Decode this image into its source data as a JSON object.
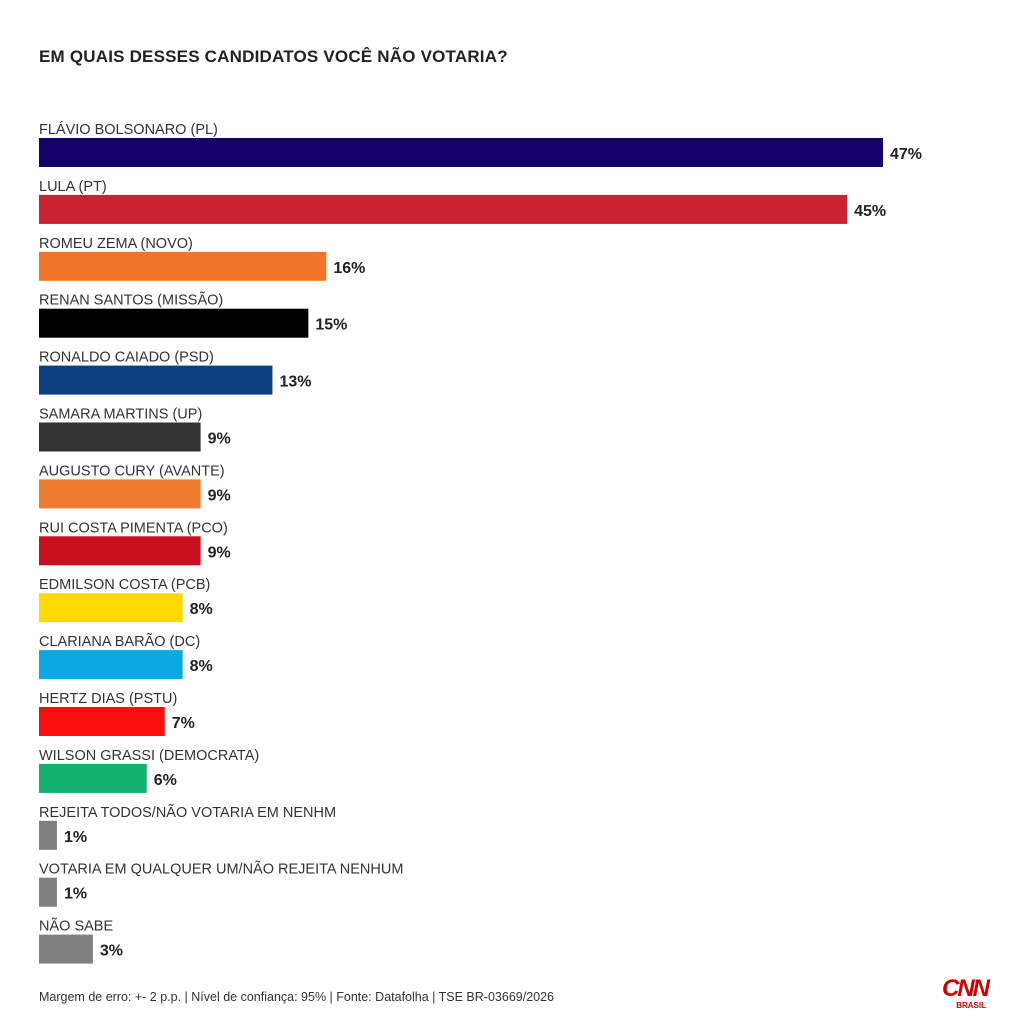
{
  "chart_data": {
    "type": "bar",
    "orientation": "horizontal",
    "title": "EM QUAIS DESSES CANDIDATOS VOCÊ NÃO VOTARIA?",
    "categories": [
      "FLÁVIO BOLSONARO (PL)",
      "LULA (PT)",
      "ROMEU ZEMA (NOVO)",
      "RENAN SANTOS (MISSÃO)",
      "RONALDO CAIADO (PSD)",
      "SAMARA MARTINS (UP)",
      "AUGUSTO CURY (AVANTE)",
      "RUI COSTA PIMENTA (PCO)",
      "EDMILSON COSTA (PCB)",
      "CLARIANA BARÃO (DC)",
      "HERTZ DIAS (PSTU)",
      "WILSON GRASSI (DEMOCRATA)",
      "REJEITA TODOS/NÃO VOTARIA EM NENHM",
      "VOTARIA EM QUALQUER UM/NÃO REJEITA NENHUM",
      "NÃO SABE"
    ],
    "values": [
      47,
      45,
      16,
      15,
      13,
      9,
      9,
      9,
      8,
      8,
      7,
      6,
      1,
      1,
      3
    ],
    "value_labels": [
      "47%",
      "45%",
      "16%",
      "15%",
      "13%",
      "9%",
      "9%",
      "9%",
      "8%",
      "8%",
      "7%",
      "6%",
      "1%",
      "1%",
      "3%"
    ],
    "colors": [
      "#14006b",
      "#cc2130",
      "#f07528",
      "#000000",
      "#0c3f80",
      "#333333",
      "#f07a2e",
      "#c8101f",
      "#ffd900",
      "#0aa9e6",
      "#fa0d0d",
      "#14b070",
      "#808080",
      "#808080",
      "#808080"
    ],
    "unit": "%",
    "xlim": [
      0,
      47
    ],
    "grid": false,
    "legend": "none"
  },
  "footer": {
    "note": "Margem de erro: +- 2 p.p. | Nível de confiança: 95% | Fonte: Datafolha | TSE BR-03669/2026"
  },
  "logo": {
    "main": "CNN",
    "sub": "BRASIL"
  }
}
